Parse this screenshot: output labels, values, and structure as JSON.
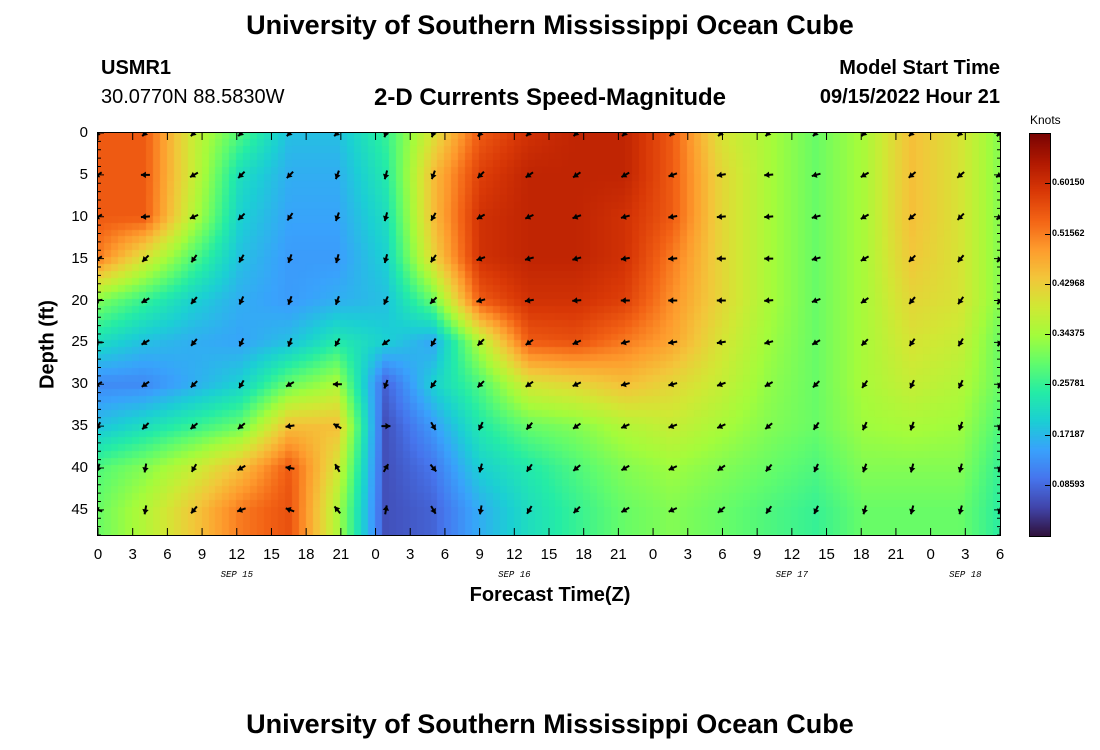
{
  "header": {
    "title": "University of Southern Mississippi Ocean Cube",
    "station_id": "USMR1",
    "station_coords": "30.0770N  88.5830W",
    "plot_title": "2-D Currents Speed-Magnitude",
    "model_start_label": "Model Start Time",
    "model_start_value": "09/15/2022 Hour 21",
    "footer_title": "University of Southern Mississippi Ocean Cube"
  },
  "chart_data": {
    "type": "heatmap",
    "title": "2-D Currents Speed-Magnitude",
    "xlabel": "Forecast Time(Z)",
    "ylabel": "Depth (ft)",
    "colorbar_label": "Knots",
    "colorbar_ticks": [
      "0.60150",
      "0.51562",
      "0.42968",
      "0.34375",
      "0.25781",
      "0.17187",
      "0.08593"
    ],
    "colorbar_values": [
      0.6015,
      0.51562,
      0.42968,
      0.34375,
      0.25781,
      0.17187,
      0.08593
    ],
    "colorbar_range": [
      0.0,
      0.6875
    ],
    "x_range_hours": [
      0,
      78
    ],
    "x_tick_labels": [
      "0",
      "3",
      "6",
      "9",
      "12",
      "15",
      "18",
      "21",
      "0",
      "3",
      "6",
      "9",
      "12",
      "15",
      "18",
      "21",
      "0",
      "3",
      "6",
      "9",
      "12",
      "15",
      "18",
      "21",
      "0",
      "3",
      "6"
    ],
    "date_labels": [
      {
        "label": "SEP 15",
        "hour": 12
      },
      {
        "label": "SEP 16",
        "hour": 36
      },
      {
        "label": "SEP 17",
        "hour": 60
      },
      {
        "label": "SEP 18",
        "hour": 75
      }
    ],
    "y_tick_labels": [
      "0",
      "5",
      "10",
      "15",
      "20",
      "25",
      "30",
      "35",
      "40",
      "45"
    ],
    "y_range_ft": [
      0,
      48
    ],
    "grid_hours": [
      0,
      4.1,
      8.3,
      12.4,
      16.6,
      20.7,
      24.9,
      29.0,
      33.1,
      37.3,
      41.4,
      45.6,
      49.7,
      53.9,
      58.0,
      62.1,
      66.3,
      70.4,
      74.6,
      78
    ],
    "grid_depths": [
      0,
      5,
      10,
      15,
      20,
      25,
      30,
      35,
      40,
      45
    ],
    "speed_knots": [
      [
        0.55,
        0.55,
        0.38,
        0.28,
        0.18,
        0.18,
        0.26,
        0.4,
        0.55,
        0.6,
        0.62,
        0.62,
        0.55,
        0.4,
        0.35,
        0.3,
        0.35,
        0.45,
        0.4,
        0.32
      ],
      [
        0.55,
        0.55,
        0.38,
        0.22,
        0.16,
        0.16,
        0.24,
        0.45,
        0.58,
        0.62,
        0.62,
        0.62,
        0.55,
        0.42,
        0.35,
        0.3,
        0.35,
        0.45,
        0.4,
        0.32
      ],
      [
        0.55,
        0.55,
        0.36,
        0.2,
        0.15,
        0.15,
        0.22,
        0.45,
        0.6,
        0.62,
        0.62,
        0.6,
        0.55,
        0.42,
        0.35,
        0.3,
        0.35,
        0.45,
        0.4,
        0.32
      ],
      [
        0.52,
        0.4,
        0.28,
        0.18,
        0.14,
        0.14,
        0.2,
        0.42,
        0.6,
        0.62,
        0.62,
        0.6,
        0.52,
        0.42,
        0.35,
        0.3,
        0.35,
        0.44,
        0.4,
        0.32
      ],
      [
        0.32,
        0.26,
        0.2,
        0.16,
        0.14,
        0.16,
        0.18,
        0.3,
        0.55,
        0.6,
        0.6,
        0.58,
        0.5,
        0.42,
        0.35,
        0.3,
        0.35,
        0.42,
        0.4,
        0.32
      ],
      [
        0.22,
        0.18,
        0.16,
        0.15,
        0.18,
        0.24,
        0.2,
        0.15,
        0.36,
        0.55,
        0.56,
        0.52,
        0.48,
        0.4,
        0.34,
        0.3,
        0.35,
        0.4,
        0.38,
        0.3
      ],
      [
        0.12,
        0.12,
        0.16,
        0.2,
        0.3,
        0.35,
        0.08,
        0.2,
        0.28,
        0.4,
        0.42,
        0.45,
        0.42,
        0.38,
        0.33,
        0.3,
        0.35,
        0.38,
        0.36,
        0.3
      ],
      [
        0.18,
        0.22,
        0.26,
        0.3,
        0.45,
        0.45,
        0.06,
        0.14,
        0.24,
        0.3,
        0.32,
        0.36,
        0.38,
        0.35,
        0.32,
        0.3,
        0.34,
        0.35,
        0.34,
        0.28
      ],
      [
        0.28,
        0.32,
        0.38,
        0.45,
        0.55,
        0.4,
        0.06,
        0.1,
        0.2,
        0.24,
        0.28,
        0.32,
        0.34,
        0.32,
        0.3,
        0.28,
        0.32,
        0.32,
        0.32,
        0.26
      ],
      [
        0.3,
        0.36,
        0.44,
        0.52,
        0.56,
        0.36,
        0.06,
        0.08,
        0.16,
        0.22,
        0.26,
        0.3,
        0.32,
        0.3,
        0.28,
        0.26,
        0.3,
        0.3,
        0.3,
        0.25
      ]
    ],
    "arrow_direction_deg": [
      [
        225,
        225,
        225,
        225,
        225,
        225,
        200,
        200,
        220,
        225,
        225,
        225,
        225,
        225,
        225,
        225,
        225,
        225,
        225,
        225
      ],
      [
        235,
        270,
        240,
        225,
        225,
        200,
        195,
        200,
        225,
        235,
        235,
        240,
        250,
        260,
        265,
        255,
        240,
        230,
        230,
        240
      ],
      [
        240,
        265,
        245,
        225,
        215,
        200,
        195,
        210,
        240,
        245,
        250,
        255,
        260,
        265,
        265,
        255,
        240,
        230,
        225,
        230
      ],
      [
        240,
        225,
        215,
        210,
        200,
        195,
        195,
        215,
        250,
        255,
        255,
        260,
        265,
        270,
        270,
        255,
        240,
        225,
        220,
        220
      ],
      [
        260,
        240,
        220,
        205,
        200,
        200,
        205,
        225,
        255,
        260,
        265,
        270,
        270,
        270,
        265,
        250,
        235,
        220,
        215,
        215
      ],
      [
        270,
        240,
        220,
        205,
        200,
        210,
        235,
        210,
        225,
        235,
        245,
        255,
        260,
        260,
        255,
        240,
        225,
        215,
        210,
        210
      ],
      [
        240,
        235,
        225,
        210,
        240,
        270,
        200,
        215,
        225,
        235,
        245,
        255,
        255,
        250,
        240,
        225,
        215,
        205,
        205,
        205
      ],
      [
        210,
        225,
        230,
        230,
        260,
        300,
        90,
        150,
        205,
        220,
        235,
        245,
        250,
        245,
        230,
        215,
        205,
        200,
        200,
        200
      ],
      [
        200,
        190,
        210,
        240,
        280,
        330,
        30,
        140,
        195,
        215,
        230,
        240,
        245,
        235,
        220,
        205,
        200,
        195,
        195,
        200
      ],
      [
        290,
        190,
        220,
        250,
        290,
        320,
        10,
        150,
        190,
        210,
        225,
        240,
        245,
        230,
        215,
        205,
        195,
        195,
        195,
        200
      ]
    ]
  },
  "colors": {
    "colormap": [
      "#30123b",
      "#4145ab",
      "#4675ed",
      "#39a2fc",
      "#1bcfd4",
      "#24eca6",
      "#61fc6c",
      "#a4fc3b",
      "#d1e834",
      "#f3c63a",
      "#fe9b2d",
      "#f36315",
      "#d93806",
      "#b11901",
      "#7a0402"
    ]
  }
}
